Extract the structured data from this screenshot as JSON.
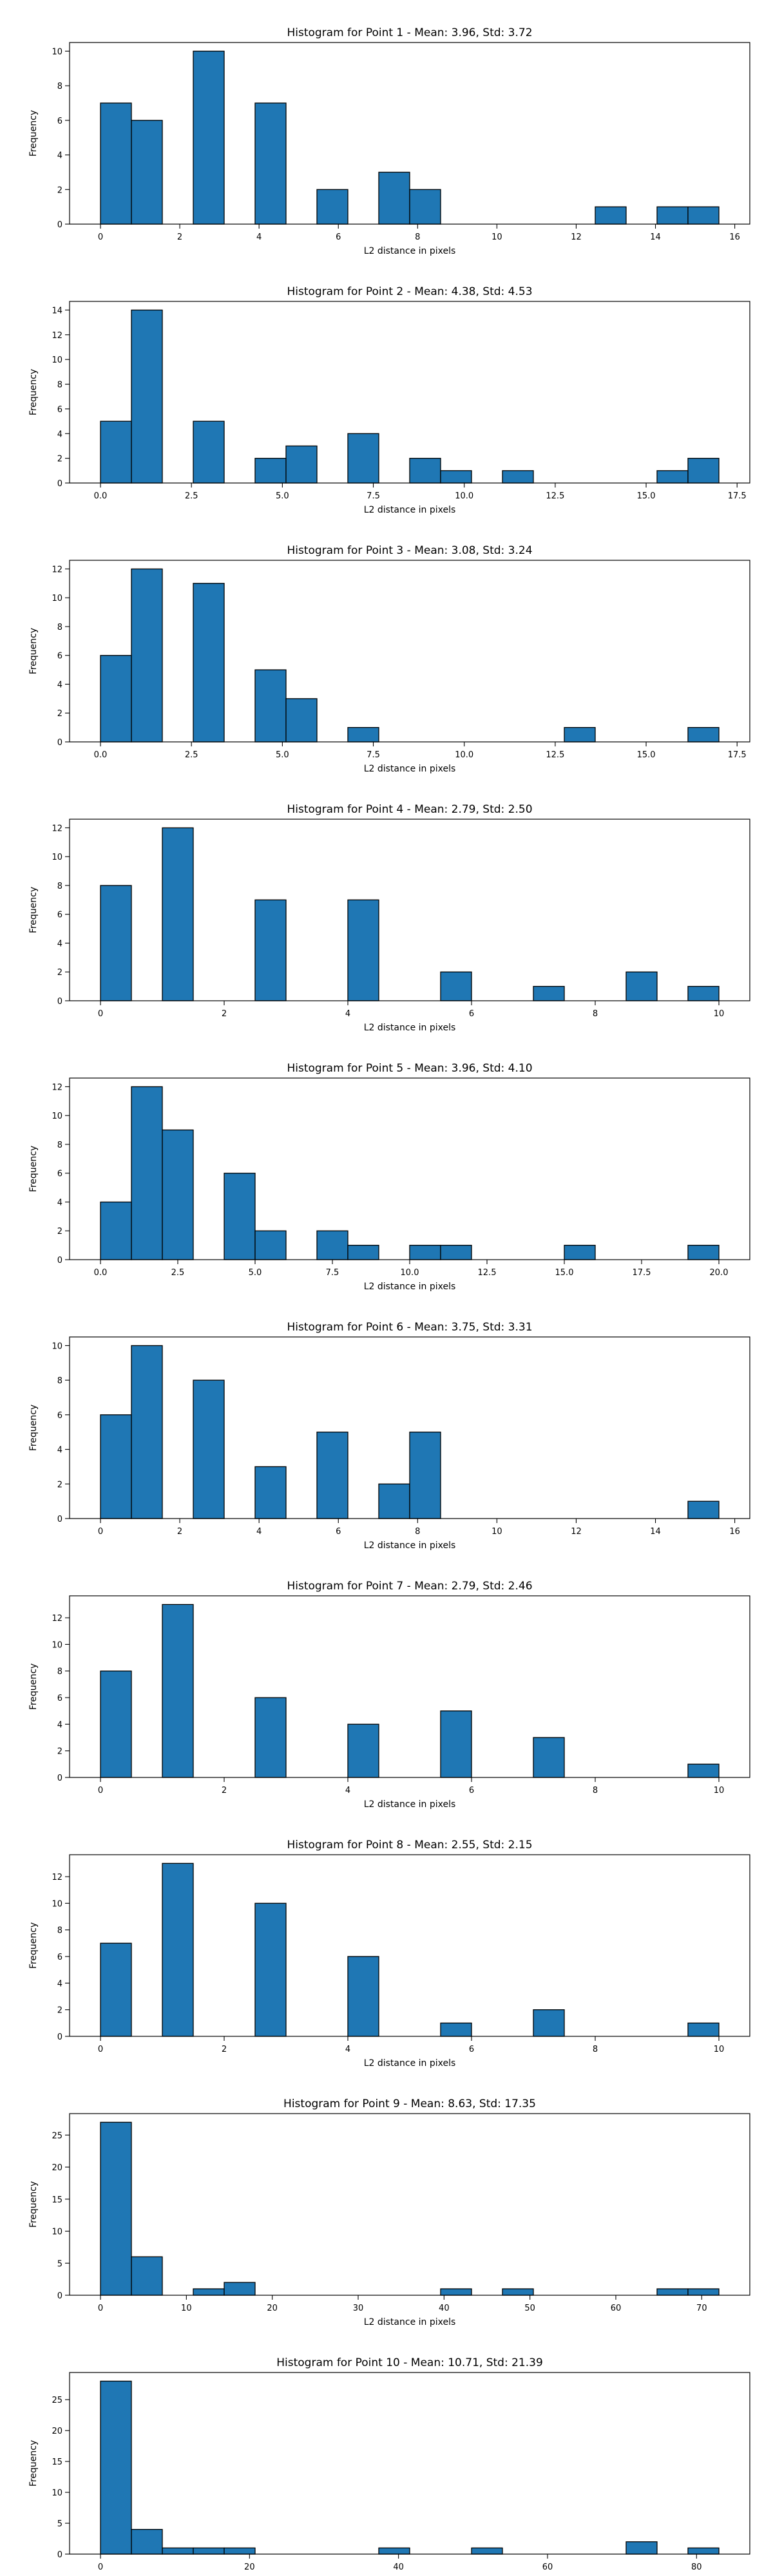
{
  "chart_data": [
    {
      "type": "histogram",
      "title": "Histogram for Point 1 - Mean: 3.96, Std: 3.72",
      "xlabel": "L2 distance in pixels",
      "ylabel": "Frequency",
      "xlim": [
        -0.78,
        16.38
      ],
      "ylim": [
        0,
        10.5
      ],
      "xticks": [
        0,
        2,
        4,
        6,
        8,
        10,
        12,
        14,
        16
      ],
      "yticks": [
        0,
        2,
        4,
        6,
        8,
        10
      ],
      "bins": [
        0.0,
        0.78,
        1.56,
        2.34,
        3.12,
        3.9,
        4.68,
        5.46,
        6.24,
        7.02,
        7.8,
        8.58,
        9.36,
        10.14,
        10.92,
        11.7,
        12.48,
        13.26,
        14.04,
        14.82,
        15.6
      ],
      "counts": [
        7,
        6,
        0,
        10,
        0,
        7,
        0,
        2,
        0,
        3,
        2,
        0,
        0,
        0,
        0,
        0,
        1,
        0,
        1,
        1
      ]
    },
    {
      "type": "histogram",
      "title": "Histogram for Point 2 - Mean: 4.38, Std: 4.53",
      "xlabel": "L2 distance in pixels",
      "ylabel": "Frequency",
      "xlim": [
        -0.85,
        17.85
      ],
      "ylim": [
        0,
        14.7
      ],
      "xticks": [
        0.0,
        2.5,
        5.0,
        7.5,
        10.0,
        12.5,
        15.0,
        17.5
      ],
      "xtick_labels": [
        "0.0",
        "2.5",
        "5.0",
        "7.5",
        "10.0",
        "12.5",
        "15.0",
        "17.5"
      ],
      "yticks": [
        0,
        2,
        4,
        6,
        8,
        10,
        12,
        14
      ],
      "bins": [
        0.0,
        0.85,
        1.7,
        2.55,
        3.4,
        4.25,
        5.1,
        5.95,
        6.8,
        7.65,
        8.5,
        9.35,
        10.2,
        11.05,
        11.9,
        12.75,
        13.6,
        14.45,
        15.3,
        16.15,
        17.0
      ],
      "counts": [
        5,
        14,
        0,
        5,
        0,
        2,
        3,
        0,
        4,
        0,
        2,
        1,
        0,
        1,
        0,
        0,
        0,
        0,
        1,
        2
      ]
    },
    {
      "type": "histogram",
      "title": "Histogram for Point 3 - Mean: 3.08, Std: 3.24",
      "xlabel": "L2 distance in pixels",
      "ylabel": "Frequency",
      "xlim": [
        -0.85,
        17.85
      ],
      "ylim": [
        0,
        12.6
      ],
      "xticks": [
        0.0,
        2.5,
        5.0,
        7.5,
        10.0,
        12.5,
        15.0,
        17.5
      ],
      "xtick_labels": [
        "0.0",
        "2.5",
        "5.0",
        "7.5",
        "10.0",
        "12.5",
        "15.0",
        "17.5"
      ],
      "yticks": [
        0,
        2,
        4,
        6,
        8,
        10,
        12
      ],
      "bins": [
        0.0,
        0.85,
        1.7,
        2.55,
        3.4,
        4.25,
        5.1,
        5.95,
        6.8,
        7.65,
        8.5,
        9.35,
        10.2,
        11.05,
        11.9,
        12.75,
        13.6,
        14.45,
        15.3,
        16.15,
        17.0
      ],
      "counts": [
        6,
        12,
        0,
        11,
        0,
        5,
        3,
        0,
        1,
        0,
        0,
        0,
        0,
        0,
        0,
        1,
        0,
        0,
        0,
        1
      ]
    },
    {
      "type": "histogram",
      "title": "Histogram for Point 4 - Mean: 2.79, Std: 2.50",
      "xlabel": "L2 distance in pixels",
      "ylabel": "Frequency",
      "xlim": [
        -0.5,
        10.5
      ],
      "ylim": [
        0,
        12.6
      ],
      "xticks": [
        0,
        2,
        4,
        6,
        8,
        10
      ],
      "yticks": [
        0,
        2,
        4,
        6,
        8,
        10,
        12
      ],
      "bins": [
        0.0,
        0.5,
        1.0,
        1.5,
        2.0,
        2.5,
        3.0,
        3.5,
        4.0,
        4.5,
        5.0,
        5.5,
        6.0,
        6.5,
        7.0,
        7.5,
        8.0,
        8.5,
        9.0,
        9.5,
        10.0
      ],
      "counts": [
        8,
        0,
        12,
        0,
        0,
        7,
        0,
        0,
        7,
        0,
        0,
        2,
        0,
        0,
        1,
        0,
        0,
        2,
        0,
        1
      ]
    },
    {
      "type": "histogram",
      "title": "Histogram for Point 5 - Mean: 3.96, Std: 4.10",
      "xlabel": "L2 distance in pixels",
      "ylabel": "Frequency",
      "xlim": [
        -1.0,
        21.0
      ],
      "ylim": [
        0,
        12.6
      ],
      "xticks": [
        0.0,
        2.5,
        5.0,
        7.5,
        10.0,
        12.5,
        15.0,
        17.5,
        20.0
      ],
      "xtick_labels": [
        "0.0",
        "2.5",
        "5.0",
        "7.5",
        "10.0",
        "12.5",
        "15.0",
        "17.5",
        "20.0"
      ],
      "yticks": [
        0,
        2,
        4,
        6,
        8,
        10,
        12
      ],
      "bins": [
        0.0,
        1.0,
        2.0,
        3.0,
        4.0,
        5.0,
        6.0,
        7.0,
        8.0,
        9.0,
        10.0,
        11.0,
        12.0,
        13.0,
        14.0,
        15.0,
        16.0,
        17.0,
        18.0,
        19.0,
        20.0
      ],
      "counts": [
        4,
        12,
        9,
        0,
        6,
        2,
        0,
        2,
        1,
        0,
        1,
        1,
        0,
        0,
        0,
        1,
        0,
        0,
        0,
        1
      ]
    },
    {
      "type": "histogram",
      "title": "Histogram for Point 6 - Mean: 3.75, Std: 3.31",
      "xlabel": "L2 distance in pixels",
      "ylabel": "Frequency",
      "xlim": [
        -0.78,
        16.38
      ],
      "ylim": [
        0,
        10.5
      ],
      "xticks": [
        0,
        2,
        4,
        6,
        8,
        10,
        12,
        14,
        16
      ],
      "yticks": [
        0,
        2,
        4,
        6,
        8,
        10
      ],
      "bins": [
        0.0,
        0.78,
        1.56,
        2.34,
        3.12,
        3.9,
        4.68,
        5.46,
        6.24,
        7.02,
        7.8,
        8.58,
        9.36,
        10.14,
        10.92,
        11.7,
        12.48,
        13.26,
        14.04,
        14.82,
        15.6
      ],
      "counts": [
        6,
        10,
        0,
        8,
        0,
        3,
        0,
        5,
        0,
        2,
        5,
        0,
        0,
        0,
        0,
        0,
        0,
        0,
        0,
        1
      ]
    },
    {
      "type": "histogram",
      "title": "Histogram for Point 7 - Mean: 2.79, Std: 2.46",
      "xlabel": "L2 distance in pixels",
      "ylabel": "Frequency",
      "xlim": [
        -0.5,
        10.5
      ],
      "ylim": [
        0,
        13.65
      ],
      "xticks": [
        0,
        2,
        4,
        6,
        8,
        10
      ],
      "yticks": [
        0,
        2,
        4,
        6,
        8,
        10,
        12
      ],
      "bins": [
        0.0,
        0.5,
        1.0,
        1.5,
        2.0,
        2.5,
        3.0,
        3.5,
        4.0,
        4.5,
        5.0,
        5.5,
        6.0,
        6.5,
        7.0,
        7.5,
        8.0,
        8.5,
        9.0,
        9.5,
        10.0
      ],
      "counts": [
        8,
        0,
        13,
        0,
        0,
        6,
        0,
        0,
        4,
        0,
        0,
        5,
        0,
        0,
        3,
        0,
        0,
        0,
        0,
        1
      ]
    },
    {
      "type": "histogram",
      "title": "Histogram for Point 8 - Mean: 2.55, Std: 2.15",
      "xlabel": "L2 distance in pixels",
      "ylabel": "Frequency",
      "xlim": [
        -0.5,
        10.5
      ],
      "ylim": [
        0,
        13.65
      ],
      "xticks": [
        0,
        2,
        4,
        6,
        8,
        10
      ],
      "yticks": [
        0,
        2,
        4,
        6,
        8,
        10,
        12
      ],
      "bins": [
        0.0,
        0.5,
        1.0,
        1.5,
        2.0,
        2.5,
        3.0,
        3.5,
        4.0,
        4.5,
        5.0,
        5.5,
        6.0,
        6.5,
        7.0,
        7.5,
        8.0,
        8.5,
        9.0,
        9.5,
        10.0
      ],
      "counts": [
        7,
        0,
        13,
        0,
        0,
        10,
        0,
        0,
        6,
        0,
        0,
        1,
        0,
        0,
        2,
        0,
        0,
        0,
        0,
        1
      ]
    },
    {
      "type": "histogram",
      "title": "Histogram for Point 9 - Mean: 8.63, Std: 17.35",
      "xlabel": "L2 distance in pixels",
      "ylabel": "Frequency",
      "xlim": [
        -3.6,
        75.6
      ],
      "ylim": [
        0,
        28.35
      ],
      "xticks": [
        0,
        10,
        20,
        30,
        40,
        50,
        60,
        70
      ],
      "yticks": [
        0,
        5,
        10,
        15,
        20,
        25
      ],
      "bins": [
        0.0,
        3.6,
        7.2,
        10.8,
        14.4,
        18.0,
        21.6,
        25.2,
        28.8,
        32.4,
        36.0,
        39.6,
        43.2,
        46.8,
        50.4,
        54.0,
        57.6,
        61.2,
        64.8,
        68.4,
        72.0
      ],
      "counts": [
        27,
        6,
        0,
        1,
        2,
        0,
        0,
        0,
        0,
        0,
        0,
        1,
        0,
        1,
        0,
        0,
        0,
        0,
        1,
        1
      ]
    },
    {
      "type": "histogram",
      "title": "Histogram for Point 10 - Mean: 10.71, Std: 21.39",
      "xlabel": "L2 distance in pixels",
      "ylabel": "Frequency",
      "xlim": [
        -4.15,
        87.15
      ],
      "ylim": [
        0,
        29.4
      ],
      "xticks": [
        0,
        20,
        40,
        60,
        80
      ],
      "yticks": [
        0,
        5,
        10,
        15,
        20,
        25
      ],
      "bins": [
        0.0,
        4.15,
        8.3,
        12.45,
        16.6,
        20.75,
        24.9,
        29.05,
        33.2,
        37.35,
        41.5,
        45.65,
        49.8,
        53.95,
        58.1,
        62.25,
        66.4,
        70.55,
        74.7,
        78.85,
        83.0
      ],
      "counts": [
        28,
        4,
        1,
        1,
        1,
        0,
        0,
        0,
        0,
        1,
        0,
        0,
        1,
        0,
        0,
        0,
        0,
        2,
        0,
        1
      ]
    }
  ]
}
